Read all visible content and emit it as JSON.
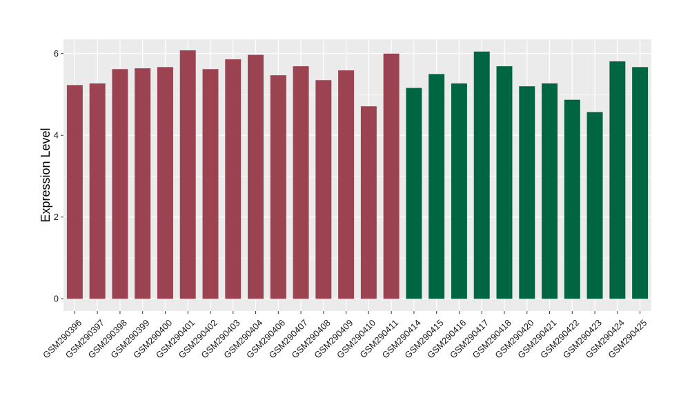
{
  "chart_data": {
    "type": "bar",
    "title": "",
    "xlabel": "",
    "ylabel": "Expression Level",
    "ylim": [
      -0.3,
      6.35
    ],
    "yticks": [
      0,
      2,
      4,
      6
    ],
    "grid": true,
    "panel_background": "#ebebeb",
    "grid_color": "#ffffff",
    "categories": [
      "GSM290396",
      "GSM290397",
      "GSM290398",
      "GSM290399",
      "GSM290400",
      "GSM290401",
      "GSM290402",
      "GSM290403",
      "GSM290404",
      "GSM290406",
      "GSM290407",
      "GSM290408",
      "GSM290409",
      "GSM290410",
      "GSM290411",
      "GSM290414",
      "GSM290415",
      "GSM290416",
      "GSM290417",
      "GSM290418",
      "GSM290420",
      "GSM290421",
      "GSM290422",
      "GSM290423",
      "GSM290424",
      "GSM290425"
    ],
    "values": [
      5.23,
      5.27,
      5.62,
      5.64,
      5.67,
      6.08,
      5.62,
      5.86,
      5.97,
      5.47,
      5.69,
      5.35,
      5.59,
      4.71,
      6.0,
      5.16,
      5.5,
      5.27,
      6.05,
      5.69,
      5.2,
      5.27,
      4.87,
      4.57,
      5.81,
      5.67
    ],
    "group_colors": [
      "#9b4350",
      "#006642"
    ],
    "groups": [
      0,
      0,
      0,
      0,
      0,
      0,
      0,
      0,
      0,
      0,
      0,
      0,
      0,
      0,
      0,
      1,
      1,
      1,
      1,
      1,
      1,
      1,
      1,
      1,
      1,
      1
    ]
  }
}
